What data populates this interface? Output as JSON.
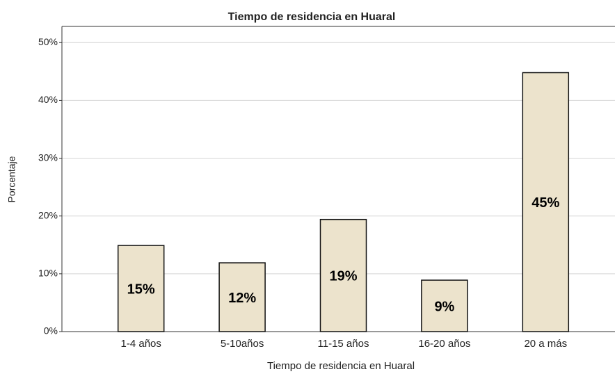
{
  "chart_data": {
    "type": "bar",
    "title": "Tiempo de residencia en Huaral",
    "x_label": "Tiempo de residencia en Huaral",
    "y_label": "Porcentaje",
    "categories": [
      "1-4 años",
      "5-10años",
      "11-15 años",
      "16-20 años",
      "20 a más"
    ],
    "values": [
      14.9,
      11.9,
      19.4,
      8.9,
      44.8
    ],
    "value_labels": [
      "15%",
      "12%",
      "19%",
      "9%",
      "45%"
    ],
    "color": "#ece3cc",
    "ylim": [
      0,
      52.8
    ],
    "yticks": [
      {
        "value": 0,
        "label": "0%"
      },
      {
        "value": 10,
        "label": "10%"
      },
      {
        "value": 20,
        "label": "20%"
      },
      {
        "value": 30,
        "label": "30%"
      },
      {
        "value": 40,
        "label": "40%"
      },
      {
        "value": 50,
        "label": "50%"
      }
    ],
    "grid": true
  }
}
